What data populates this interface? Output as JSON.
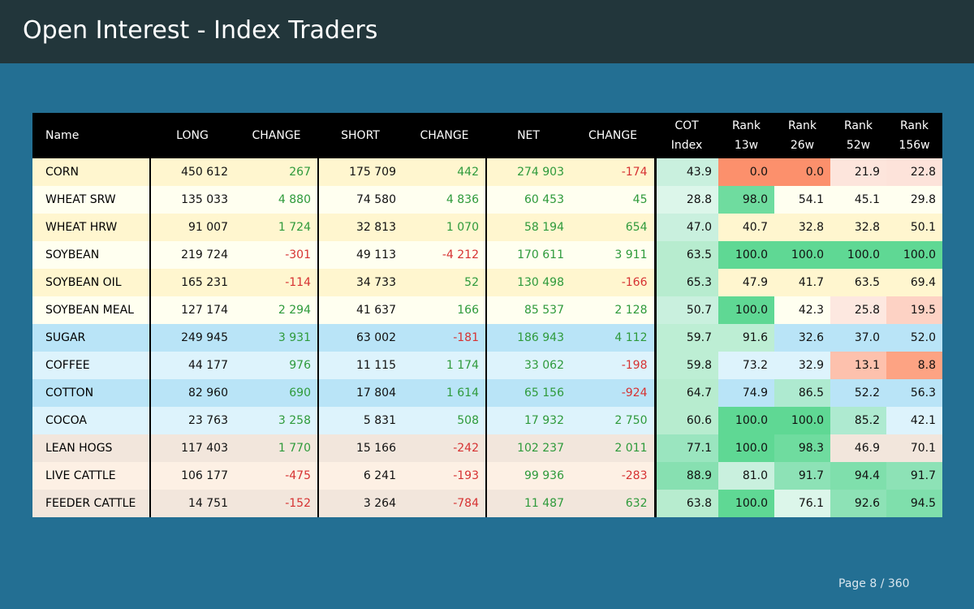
{
  "header": {
    "title": "Open Interest - Index Traders"
  },
  "table": {
    "columns": {
      "name": "Name",
      "long": "LONG",
      "long_change": "CHANGE",
      "short": "SHORT",
      "short_change": "CHANGE",
      "net": "NET",
      "net_change": "CHANGE",
      "cot_line1": "COT",
      "cot_line2": "Index",
      "r13_line1": "Rank",
      "r13_line2": "13w",
      "r26_line1": "Rank",
      "r26_line2": "26w",
      "r52_line1": "Rank",
      "r52_line2": "52w",
      "r156_line1": "Rank",
      "r156_line2": "156w"
    },
    "rows": [
      {
        "name": "CORN",
        "long": "450 612",
        "long_change": "267",
        "short": "175 709",
        "short_change": "442",
        "net": "274 903",
        "net_change": "-174",
        "cot": "43.9",
        "r13": "0.0",
        "r26": "0.0",
        "r52": "21.9",
        "r156": "22.8",
        "row_bg": "#fff6cf",
        "cot_bg": "#c9f0de",
        "r13_bg": "#fc906c",
        "r26_bg": "#fc906c",
        "r52_bg": "#fde5dc",
        "r156_bg": "#fde3da"
      },
      {
        "name": "WHEAT SRW",
        "long": "135 033",
        "long_change": "4 880",
        "short": "74 580",
        "short_change": "4 836",
        "net": "60 453",
        "net_change": "45",
        "cot": "28.8",
        "r13": "98.0",
        "r26": "54.1",
        "r52": "45.1",
        "r156": "29.8",
        "row_bg": "#fffff0",
        "cot_bg": "#dcf6ea",
        "r13_bg": "#6fdc9f",
        "r26_bg": "#fffff0",
        "r52_bg": "#fffff0",
        "r156_bg": "#fffff0"
      },
      {
        "name": "WHEAT HRW",
        "long": "91 007",
        "long_change": "1 724",
        "short": "32 813",
        "short_change": "1 070",
        "net": "58 194",
        "net_change": "654",
        "cot": "47.0",
        "r13": "40.7",
        "r26": "32.8",
        "r52": "32.8",
        "r156": "50.1",
        "row_bg": "#fff6cf",
        "cot_bg": "#c9f0de",
        "r13_bg": "#fff6cf",
        "r26_bg": "#fff6cf",
        "r52_bg": "#fff6cf",
        "r156_bg": "#fff6cf"
      },
      {
        "name": "SOYBEAN",
        "long": "219 724",
        "long_change": "-301",
        "short": "49 113",
        "short_change": "-4 212",
        "net": "170 611",
        "net_change": "3 911",
        "cot": "63.5",
        "r13": "100.0",
        "r26": "100.0",
        "r52": "100.0",
        "r156": "100.0",
        "row_bg": "#fffff0",
        "cot_bg": "#b7eccf",
        "r13_bg": "#5fd894",
        "r26_bg": "#5fd894",
        "r52_bg": "#5fd894",
        "r156_bg": "#5fd894"
      },
      {
        "name": "SOYBEAN OIL",
        "long": "165 231",
        "long_change": "-114",
        "short": "34 733",
        "short_change": "52",
        "net": "130 498",
        "net_change": "-166",
        "cot": "65.3",
        "r13": "47.9",
        "r26": "41.7",
        "r52": "63.5",
        "r156": "69.4",
        "row_bg": "#fff6cf",
        "cot_bg": "#b7eccf",
        "r13_bg": "#fff6cf",
        "r26_bg": "#fff6cf",
        "r52_bg": "#fff6cf",
        "r156_bg": "#fff6cf"
      },
      {
        "name": "SOYBEAN MEAL",
        "long": "127 174",
        "long_change": "2 294",
        "short": "41 637",
        "short_change": "166",
        "net": "85 537",
        "net_change": "2 128",
        "cot": "50.7",
        "r13": "100.0",
        "r26": "42.3",
        "r52": "25.8",
        "r156": "19.5",
        "row_bg": "#fffff0",
        "cot_bg": "#c9f0de",
        "r13_bg": "#5fd894",
        "r26_bg": "#fffff0",
        "r52_bg": "#fde8e0",
        "r156_bg": "#fdd2c4"
      },
      {
        "name": "SUGAR",
        "long": "249 945",
        "long_change": "3 931",
        "short": "63 002",
        "short_change": "-181",
        "net": "186 943",
        "net_change": "4 112",
        "cot": "59.7",
        "r13": "91.6",
        "r26": "32.6",
        "r52": "37.0",
        "r156": "52.0",
        "row_bg": "#b9e4f7",
        "cot_bg": "#bdeed4",
        "r13_bg": "#bdeed4",
        "r26_bg": "#b9e4f7",
        "r52_bg": "#b9e4f7",
        "r156_bg": "#b9e4f7"
      },
      {
        "name": "COFFEE",
        "long": "44 177",
        "long_change": "976",
        "short": "11 115",
        "short_change": "1 174",
        "net": "33 062",
        "net_change": "-198",
        "cot": "59.8",
        "r13": "73.2",
        "r26": "32.9",
        "r52": "13.1",
        "r156": "8.8",
        "row_bg": "#ddf3fc",
        "cot_bg": "#bdeed4",
        "r13_bg": "#ddf3fc",
        "r26_bg": "#ddf3fc",
        "r52_bg": "#fdc1ad",
        "r156_bg": "#fda383"
      },
      {
        "name": "COTTON",
        "long": "82 960",
        "long_change": "690",
        "short": "17 804",
        "short_change": "1 614",
        "net": "65 156",
        "net_change": "-924",
        "cot": "64.7",
        "r13": "74.9",
        "r26": "86.5",
        "r52": "52.2",
        "r156": "56.3",
        "row_bg": "#b9e4f7",
        "cot_bg": "#b7eccf",
        "r13_bg": "#b9e4f7",
        "r26_bg": "#aeead0",
        "r52_bg": "#b9e4f7",
        "r156_bg": "#b9e4f7"
      },
      {
        "name": "COCOA",
        "long": "23 763",
        "long_change": "3 258",
        "short": "5 831",
        "short_change": "508",
        "net": "17 932",
        "net_change": "2 750",
        "cot": "60.6",
        "r13": "100.0",
        "r26": "100.0",
        "r52": "85.2",
        "r156": "42.1",
        "row_bg": "#ddf3fc",
        "cot_bg": "#b7eccf",
        "r13_bg": "#5fd894",
        "r26_bg": "#5fd894",
        "r52_bg": "#aeead0",
        "r156_bg": "#ddf3fc"
      },
      {
        "name": "LEAN HOGS",
        "long": "117 403",
        "long_change": "1 770",
        "short": "15 166",
        "short_change": "-242",
        "net": "102 237",
        "net_change": "2 011",
        "cot": "77.1",
        "r13": "100.0",
        "r26": "98.3",
        "r52": "46.9",
        "r156": "70.1",
        "row_bg": "#f2e6dc",
        "cot_bg": "#9ae5bf",
        "r13_bg": "#5fd894",
        "r26_bg": "#6fdc9f",
        "r52_bg": "#f2e6dc",
        "r156_bg": "#f2e6dc"
      },
      {
        "name": "LIVE CATTLE",
        "long": "106 177",
        "long_change": "-475",
        "short": "6 241",
        "short_change": "-193",
        "net": "99 936",
        "net_change": "-283",
        "cot": "88.9",
        "r13": "81.0",
        "r26": "91.7",
        "r52": "94.4",
        "r156": "91.7",
        "row_bg": "#fdf0e4",
        "cot_bg": "#87e0b1",
        "r13_bg": "#c9f0de",
        "r26_bg": "#8de2b6",
        "r52_bg": "#7fdfac",
        "r156_bg": "#8de2b6"
      },
      {
        "name": "FEEDER CATTLE",
        "long": "14 751",
        "long_change": "-152",
        "short": "3 264",
        "short_change": "-784",
        "net": "11 487",
        "net_change": "632",
        "cot": "63.8",
        "r13": "100.0",
        "r26": "76.1",
        "r52": "92.6",
        "r156": "94.5",
        "row_bg": "#f2e6dc",
        "cot_bg": "#b7eccf",
        "r13_bg": "#5fd894",
        "r26_bg": "#dcf6ea",
        "r52_bg": "#8de2b6",
        "r156_bg": "#7fdfac"
      }
    ]
  },
  "footer": {
    "page_label": "Page 8 / 360"
  }
}
